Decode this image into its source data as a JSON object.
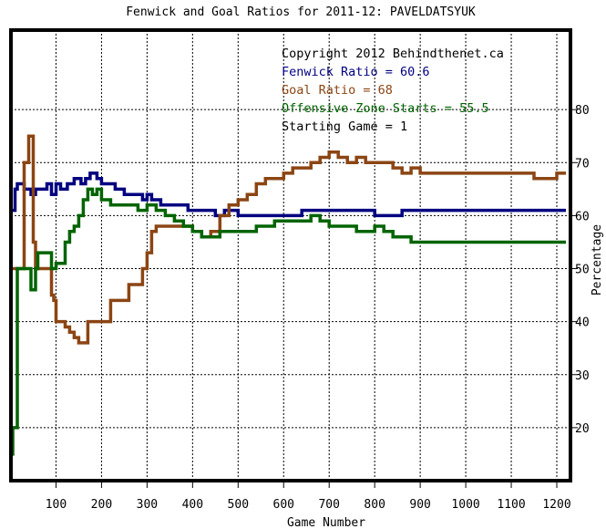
{
  "chart_data": {
    "type": "line",
    "title": "Fenwick and Goal Ratios for 2011-12: PAVELDATSYUK",
    "xlabel": "Game Number",
    "ylabel": "Percentage",
    "xlim": [
      1,
      1230
    ],
    "ylim": [
      10,
      95
    ],
    "x_ticks": [
      100,
      200,
      300,
      400,
      500,
      600,
      700,
      800,
      900,
      1000,
      1100,
      1200
    ],
    "y_ticks": [
      20,
      30,
      40,
      50,
      60,
      70,
      80
    ],
    "grid": true,
    "legend_position": "top-right",
    "annotations": [
      {
        "text": "Copyright 2012 Behindthenet.ca",
        "color": "#000000"
      },
      {
        "text": "Fenwick Ratio = 60.6",
        "color": "#000080"
      },
      {
        "text": "Goal Ratio = 68",
        "color": "#8b4513"
      },
      {
        "text": "Offensive Zone Starts = 55.5",
        "color": "#006400"
      },
      {
        "text": "Starting Game = 1",
        "color": "#000000"
      }
    ],
    "series": [
      {
        "name": "Fenwick Ratio",
        "color": "#000080",
        "x": [
          1,
          10,
          15,
          20,
          30,
          45,
          55,
          65,
          80,
          90,
          100,
          110,
          125,
          140,
          155,
          165,
          175,
          190,
          200,
          215,
          230,
          250,
          270,
          290,
          300,
          310,
          330,
          350,
          370,
          390,
          410,
          430,
          450,
          470,
          500,
          530,
          560,
          590,
          620,
          640,
          660,
          700,
          740,
          780,
          800,
          830,
          860,
          900,
          950,
          1000,
          1050,
          1100,
          1150,
          1200,
          1220
        ],
        "y": [
          61,
          65,
          66,
          66,
          65,
          64,
          65,
          65,
          66,
          64,
          66,
          65,
          66,
          67,
          66,
          67,
          68,
          67,
          66,
          66,
          65,
          64,
          64,
          63,
          64,
          63,
          62,
          62,
          62,
          61,
          61,
          61,
          60,
          61,
          60,
          60,
          60,
          60,
          60,
          61,
          61,
          61,
          61,
          61,
          60,
          60,
          61,
          61,
          61,
          61,
          61,
          61,
          61,
          61,
          61
        ]
      },
      {
        "name": "Goal Ratio",
        "color": "#8b4513",
        "x": [
          1,
          10,
          15,
          20,
          30,
          40,
          45,
          50,
          55,
          60,
          65,
          70,
          80,
          90,
          95,
          100,
          110,
          120,
          130,
          140,
          150,
          160,
          170,
          180,
          190,
          200,
          210,
          220,
          240,
          260,
          280,
          290,
          300,
          310,
          320,
          340,
          360,
          380,
          400,
          420,
          440,
          460,
          480,
          500,
          520,
          540,
          560,
          580,
          600,
          620,
          640,
          660,
          680,
          700,
          720,
          740,
          760,
          780,
          800,
          820,
          840,
          860,
          880,
          900,
          950,
          1000,
          1050,
          1080,
          1100,
          1120,
          1150,
          1200,
          1220
        ],
        "y": [
          50,
          50,
          50,
          50,
          70,
          75,
          75,
          55,
          50,
          50,
          50,
          50,
          50,
          45,
          44,
          40,
          40,
          39,
          38,
          37,
          36,
          36,
          40,
          40,
          40,
          40,
          40,
          44,
          44,
          47,
          47,
          50,
          53,
          57,
          58,
          58,
          58,
          58,
          57,
          56,
          57,
          60,
          62,
          63,
          64,
          66,
          67,
          67,
          68,
          69,
          69,
          70,
          71,
          72,
          71,
          70,
          71,
          70,
          70,
          70,
          69,
          68,
          69,
          68,
          68,
          68,
          68,
          68,
          68,
          68,
          67,
          68,
          68
        ]
      },
      {
        "name": "Offensive Zone Starts",
        "color": "#006400",
        "x": [
          1,
          5,
          10,
          15,
          20,
          30,
          40,
          45,
          50,
          55,
          60,
          70,
          80,
          90,
          100,
          110,
          120,
          130,
          140,
          150,
          160,
          170,
          180,
          190,
          200,
          220,
          240,
          260,
          280,
          300,
          320,
          340,
          360,
          380,
          400,
          420,
          440,
          460,
          480,
          500,
          520,
          540,
          560,
          580,
          600,
          620,
          640,
          660,
          680,
          700,
          720,
          740,
          760,
          780,
          800,
          820,
          840,
          860,
          880,
          900,
          950,
          1000,
          1050,
          1100,
          1150,
          1200,
          1220
        ],
        "y": [
          15,
          20,
          20,
          50,
          50,
          50,
          50,
          46,
          46,
          50,
          53,
          53,
          53,
          50,
          51,
          51,
          55,
          57,
          58,
          60,
          63,
          65,
          64,
          65,
          63,
          62,
          62,
          62,
          61,
          62,
          61,
          60,
          59,
          58,
          57,
          56,
          56,
          57,
          57,
          57,
          57,
          58,
          58,
          59,
          59,
          59,
          59,
          60,
          59,
          58,
          58,
          58,
          57,
          57,
          58,
          57,
          56,
          56,
          55,
          55,
          55,
          55,
          55,
          55,
          55,
          55,
          55
        ]
      }
    ]
  }
}
